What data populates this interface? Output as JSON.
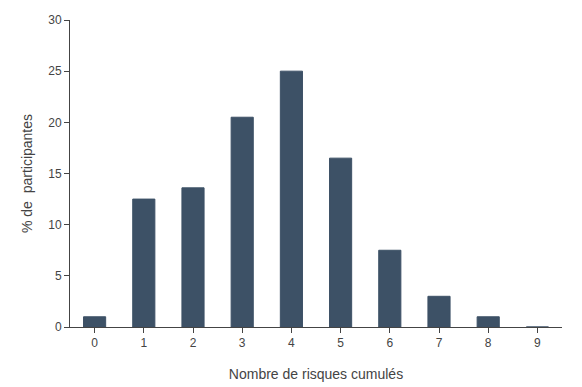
{
  "chart_data": {
    "type": "bar",
    "x": [
      0,
      1,
      2,
      3,
      4,
      5,
      6,
      7,
      8,
      9
    ],
    "values": [
      1.0,
      12.5,
      13.6,
      20.5,
      25.0,
      16.5,
      7.5,
      3.0,
      1.0,
      0.0
    ],
    "color": "#3d5166",
    "xlabel": "Nombre de risques cumulés",
    "ylabel": "% de  participantes",
    "xlim": [
      -0.5,
      9.5
    ],
    "xticks": [
      0,
      1,
      2,
      3,
      4,
      5,
      6,
      7,
      8,
      9
    ],
    "ylim": [
      0,
      30
    ],
    "yticks": [
      0,
      5,
      10,
      15,
      20,
      25,
      30
    ],
    "grid": false
  }
}
